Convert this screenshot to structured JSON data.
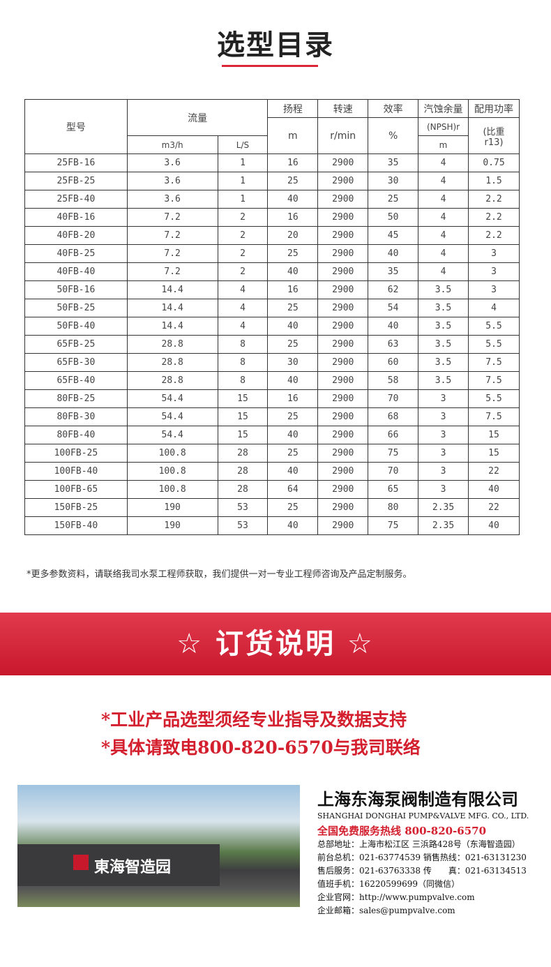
{
  "title": "选型目录",
  "table": {
    "headers": {
      "model": "型号",
      "flow": "流量",
      "flow_m3h": "m3/h",
      "flow_ls": "L/S",
      "head": "扬程",
      "head_unit": "m",
      "speed": "转速",
      "speed_unit": "r/min",
      "eff": "效率",
      "eff_unit": "%",
      "npsh": "汽蚀余量",
      "npsh_sub": "(NPSH)r",
      "npsh_unit": "m",
      "power": "配用功率",
      "power_sub": "(比重 r13)"
    },
    "rows": [
      [
        "25FB-16",
        "3.6",
        "1",
        "16",
        "2900",
        "35",
        "4",
        "0.75"
      ],
      [
        "25FB-25",
        "3.6",
        "1",
        "25",
        "2900",
        "30",
        "4",
        "1.5"
      ],
      [
        "25FB-40",
        "3.6",
        "1",
        "40",
        "2900",
        "25",
        "4",
        "2.2"
      ],
      [
        "40FB-16",
        "7.2",
        "2",
        "16",
        "2900",
        "50",
        "4",
        "2.2"
      ],
      [
        "40FB-20",
        "7.2",
        "2",
        "20",
        "2900",
        "45",
        "4",
        "2.2"
      ],
      [
        "40FB-25",
        "7.2",
        "2",
        "25",
        "2900",
        "40",
        "4",
        "3"
      ],
      [
        "40FB-40",
        "7.2",
        "2",
        "40",
        "2900",
        "35",
        "4",
        "3"
      ],
      [
        "50FB-16",
        "14.4",
        "4",
        "16",
        "2900",
        "62",
        "3.5",
        "3"
      ],
      [
        "50FB-25",
        "14.4",
        "4",
        "25",
        "2900",
        "54",
        "3.5",
        "4"
      ],
      [
        "50FB-40",
        "14.4",
        "4",
        "40",
        "2900",
        "40",
        "3.5",
        "5.5"
      ],
      [
        "65FB-25",
        "28.8",
        "8",
        "25",
        "2900",
        "63",
        "3.5",
        "5.5"
      ],
      [
        "65FB-30",
        "28.8",
        "8",
        "30",
        "2900",
        "60",
        "3.5",
        "7.5"
      ],
      [
        "65FB-40",
        "28.8",
        "8",
        "40",
        "2900",
        "58",
        "3.5",
        "7.5"
      ],
      [
        "80FB-25",
        "54.4",
        "15",
        "16",
        "2900",
        "70",
        "3",
        "5.5"
      ],
      [
        "80FB-30",
        "54.4",
        "15",
        "25",
        "2900",
        "68",
        "3",
        "7.5"
      ],
      [
        "80FB-40",
        "54.4",
        "15",
        "40",
        "2900",
        "66",
        "3",
        "15"
      ],
      [
        "100FB-25",
        "100.8",
        "28",
        "25",
        "2900",
        "75",
        "3",
        "15"
      ],
      [
        "100FB-40",
        "100.8",
        "28",
        "40",
        "2900",
        "70",
        "3",
        "22"
      ],
      [
        "100FB-65",
        "100.8",
        "28",
        "64",
        "2900",
        "65",
        "3",
        "40"
      ],
      [
        "150FB-25",
        "190",
        "53",
        "25",
        "2900",
        "80",
        "2.35",
        "22"
      ],
      [
        "150FB-40",
        "190",
        "53",
        "40",
        "2900",
        "75",
        "2.35",
        "40"
      ]
    ]
  },
  "note": "*更多参数资料，请联络我司水泵工程师获取，我们提供一对一专业工程师咨询及产品定制服务。",
  "banner": "☆ 订货说明 ☆",
  "order_lines": [
    "*工业产品选型须经专业指导及数据支持",
    "*具体请致电800-820-6570与我司联络"
  ],
  "photo_sign": "東海智造园",
  "company": {
    "name_cn": "上海东海泵阀制造有限公司",
    "name_en": "SHANGHAI DONGHAI PUMP&VALVE MFG. CO., LTD.",
    "hotline": "全国免费服务热线  800-820-6570",
    "lines": [
      "总部地址：上海市松江区 三浜路428号（东海智造园）",
      "前台总机：021-63774539   销售热线：021-63131230",
      "售后服务：021-63763338   传　　真：021-63134513",
      "值班手机：16220599699（同微信）",
      "企业官网：http://www.pumpvalve.com",
      "企业邮箱：sales@pumpvalve.com"
    ]
  },
  "colors": {
    "accent": "#d31f2e"
  }
}
